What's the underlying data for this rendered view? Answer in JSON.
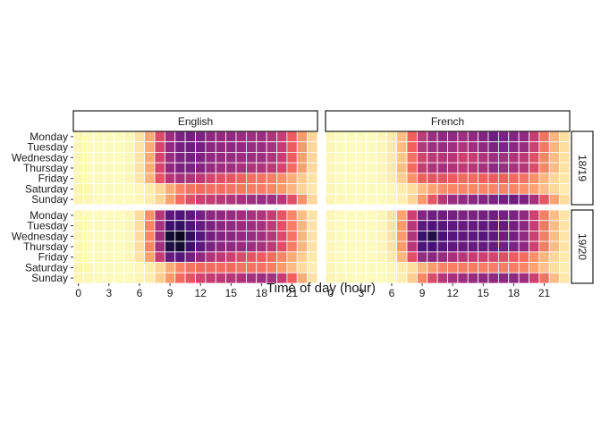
{
  "chart_data": {
    "type": "heatmap",
    "xlabel": "Time of day (hour)",
    "ylabel": "",
    "days": [
      "Monday",
      "Tuesday",
      "Wednesday",
      "Thursday",
      "Friday",
      "Saturday",
      "Sunday"
    ],
    "hours": [
      0,
      1,
      2,
      3,
      4,
      5,
      6,
      7,
      8,
      9,
      10,
      11,
      12,
      13,
      14,
      15,
      16,
      17,
      18,
      19,
      20,
      21,
      22,
      23
    ],
    "x_ticks": [
      0,
      3,
      6,
      9,
      12,
      15,
      18,
      21
    ],
    "columns": [
      "English",
      "French"
    ],
    "rows": [
      "18/19",
      "19/20"
    ],
    "color_scale": "magma",
    "value_range": [
      0,
      1
    ],
    "panels": [
      {
        "language": "English",
        "year": "18/19",
        "values": [
          [
            0.02,
            0.01,
            0.01,
            0.01,
            0.01,
            0.02,
            0.08,
            0.22,
            0.45,
            0.62,
            0.72,
            0.74,
            0.72,
            0.66,
            0.65,
            0.66,
            0.64,
            0.62,
            0.63,
            0.58,
            0.52,
            0.4,
            0.26,
            0.12
          ],
          [
            0.02,
            0.01,
            0.01,
            0.01,
            0.01,
            0.02,
            0.08,
            0.22,
            0.48,
            0.66,
            0.74,
            0.76,
            0.74,
            0.68,
            0.66,
            0.67,
            0.66,
            0.64,
            0.64,
            0.6,
            0.53,
            0.4,
            0.26,
            0.12
          ],
          [
            0.02,
            0.01,
            0.01,
            0.01,
            0.01,
            0.02,
            0.08,
            0.22,
            0.48,
            0.64,
            0.72,
            0.74,
            0.72,
            0.66,
            0.64,
            0.65,
            0.64,
            0.62,
            0.62,
            0.58,
            0.52,
            0.4,
            0.25,
            0.12
          ],
          [
            0.02,
            0.01,
            0.01,
            0.01,
            0.01,
            0.02,
            0.08,
            0.22,
            0.48,
            0.66,
            0.72,
            0.72,
            0.7,
            0.64,
            0.62,
            0.62,
            0.6,
            0.58,
            0.58,
            0.54,
            0.48,
            0.36,
            0.24,
            0.11
          ],
          [
            0.02,
            0.01,
            0.01,
            0.01,
            0.01,
            0.02,
            0.07,
            0.2,
            0.42,
            0.56,
            0.6,
            0.58,
            0.54,
            0.48,
            0.44,
            0.42,
            0.38,
            0.35,
            0.34,
            0.32,
            0.28,
            0.22,
            0.15,
            0.08
          ],
          [
            0.03,
            0.02,
            0.01,
            0.01,
            0.01,
            0.01,
            0.02,
            0.05,
            0.12,
            0.22,
            0.3,
            0.34,
            0.36,
            0.35,
            0.35,
            0.34,
            0.33,
            0.32,
            0.32,
            0.3,
            0.26,
            0.2,
            0.13,
            0.07
          ],
          [
            0.03,
            0.02,
            0.01,
            0.01,
            0.01,
            0.01,
            0.02,
            0.05,
            0.12,
            0.24,
            0.36,
            0.44,
            0.5,
            0.52,
            0.55,
            0.58,
            0.6,
            0.62,
            0.64,
            0.62,
            0.56,
            0.44,
            0.28,
            0.12
          ]
        ]
      },
      {
        "language": "French",
        "year": "18/19",
        "values": [
          [
            0.02,
            0.01,
            0.01,
            0.01,
            0.01,
            0.02,
            0.06,
            0.18,
            0.38,
            0.54,
            0.62,
            0.66,
            0.66,
            0.62,
            0.66,
            0.7,
            0.76,
            0.72,
            0.7,
            0.66,
            0.52,
            0.34,
            0.2,
            0.1
          ],
          [
            0.02,
            0.01,
            0.01,
            0.01,
            0.01,
            0.02,
            0.06,
            0.18,
            0.38,
            0.56,
            0.62,
            0.64,
            0.62,
            0.58,
            0.62,
            0.66,
            0.72,
            0.7,
            0.68,
            0.64,
            0.5,
            0.33,
            0.2,
            0.1
          ],
          [
            0.02,
            0.01,
            0.01,
            0.01,
            0.01,
            0.02,
            0.06,
            0.16,
            0.34,
            0.48,
            0.54,
            0.56,
            0.56,
            0.5,
            0.52,
            0.58,
            0.62,
            0.6,
            0.58,
            0.54,
            0.44,
            0.3,
            0.18,
            0.09
          ],
          [
            0.02,
            0.01,
            0.01,
            0.01,
            0.01,
            0.02,
            0.06,
            0.18,
            0.36,
            0.52,
            0.58,
            0.6,
            0.58,
            0.54,
            0.56,
            0.6,
            0.66,
            0.62,
            0.6,
            0.56,
            0.45,
            0.3,
            0.18,
            0.09
          ],
          [
            0.02,
            0.01,
            0.01,
            0.01,
            0.01,
            0.02,
            0.05,
            0.14,
            0.28,
            0.38,
            0.42,
            0.42,
            0.4,
            0.36,
            0.36,
            0.38,
            0.4,
            0.38,
            0.36,
            0.34,
            0.28,
            0.2,
            0.12,
            0.07
          ],
          [
            0.02,
            0.01,
            0.01,
            0.01,
            0.01,
            0.01,
            0.02,
            0.05,
            0.1,
            0.18,
            0.24,
            0.28,
            0.3,
            0.3,
            0.3,
            0.3,
            0.3,
            0.3,
            0.3,
            0.28,
            0.24,
            0.18,
            0.12,
            0.06
          ],
          [
            0.03,
            0.02,
            0.01,
            0.01,
            0.01,
            0.01,
            0.02,
            0.04,
            0.12,
            0.26,
            0.42,
            0.56,
            0.64,
            0.66,
            0.68,
            0.7,
            0.72,
            0.74,
            0.76,
            0.72,
            0.6,
            0.42,
            0.24,
            0.1
          ]
        ]
      },
      {
        "language": "English",
        "year": "19/20",
        "values": [
          [
            0.02,
            0.01,
            0.01,
            0.01,
            0.01,
            0.02,
            0.1,
            0.28,
            0.56,
            0.8,
            0.84,
            0.8,
            0.74,
            0.68,
            0.66,
            0.64,
            0.62,
            0.6,
            0.58,
            0.52,
            0.42,
            0.3,
            0.18,
            0.08
          ],
          [
            0.02,
            0.01,
            0.01,
            0.01,
            0.01,
            0.02,
            0.1,
            0.3,
            0.6,
            0.88,
            0.9,
            0.84,
            0.78,
            0.72,
            0.68,
            0.66,
            0.64,
            0.62,
            0.6,
            0.54,
            0.44,
            0.32,
            0.2,
            0.08
          ],
          [
            0.02,
            0.01,
            0.01,
            0.01,
            0.01,
            0.02,
            0.1,
            0.3,
            0.62,
            0.96,
            0.98,
            0.9,
            0.82,
            0.74,
            0.7,
            0.68,
            0.66,
            0.64,
            0.62,
            0.56,
            0.46,
            0.34,
            0.2,
            0.08
          ],
          [
            0.02,
            0.01,
            0.01,
            0.01,
            0.01,
            0.02,
            0.1,
            0.3,
            0.62,
            0.94,
            0.96,
            0.88,
            0.8,
            0.72,
            0.68,
            0.66,
            0.64,
            0.62,
            0.6,
            0.54,
            0.44,
            0.32,
            0.2,
            0.08
          ],
          [
            0.02,
            0.01,
            0.01,
            0.01,
            0.01,
            0.02,
            0.08,
            0.24,
            0.52,
            0.78,
            0.82,
            0.74,
            0.66,
            0.58,
            0.54,
            0.5,
            0.46,
            0.42,
            0.4,
            0.36,
            0.3,
            0.22,
            0.14,
            0.06
          ],
          [
            0.03,
            0.02,
            0.01,
            0.01,
            0.01,
            0.01,
            0.02,
            0.05,
            0.12,
            0.22,
            0.3,
            0.34,
            0.36,
            0.36,
            0.36,
            0.36,
            0.34,
            0.34,
            0.34,
            0.32,
            0.26,
            0.18,
            0.11,
            0.05
          ],
          [
            0.03,
            0.02,
            0.01,
            0.01,
            0.01,
            0.01,
            0.02,
            0.05,
            0.14,
            0.26,
            0.36,
            0.42,
            0.48,
            0.52,
            0.54,
            0.56,
            0.58,
            0.6,
            0.62,
            0.6,
            0.52,
            0.38,
            0.22,
            0.08
          ]
        ]
      },
      {
        "language": "French",
        "year": "19/20",
        "values": [
          [
            0.02,
            0.01,
            0.01,
            0.01,
            0.01,
            0.02,
            0.08,
            0.24,
            0.5,
            0.7,
            0.76,
            0.76,
            0.74,
            0.72,
            0.72,
            0.74,
            0.76,
            0.74,
            0.72,
            0.66,
            0.5,
            0.32,
            0.18,
            0.08
          ],
          [
            0.02,
            0.01,
            0.01,
            0.01,
            0.01,
            0.02,
            0.08,
            0.26,
            0.56,
            0.8,
            0.84,
            0.82,
            0.8,
            0.78,
            0.78,
            0.8,
            0.8,
            0.78,
            0.74,
            0.68,
            0.52,
            0.33,
            0.18,
            0.08
          ],
          [
            0.02,
            0.01,
            0.01,
            0.01,
            0.01,
            0.02,
            0.08,
            0.26,
            0.58,
            0.88,
            0.94,
            0.86,
            0.82,
            0.8,
            0.8,
            0.82,
            0.8,
            0.76,
            0.74,
            0.66,
            0.5,
            0.32,
            0.18,
            0.08
          ],
          [
            0.02,
            0.01,
            0.01,
            0.01,
            0.01,
            0.02,
            0.08,
            0.26,
            0.56,
            0.84,
            0.86,
            0.82,
            0.8,
            0.78,
            0.78,
            0.78,
            0.78,
            0.74,
            0.72,
            0.66,
            0.5,
            0.32,
            0.18,
            0.08
          ],
          [
            0.02,
            0.01,
            0.01,
            0.01,
            0.01,
            0.02,
            0.06,
            0.2,
            0.44,
            0.64,
            0.68,
            0.64,
            0.6,
            0.56,
            0.52,
            0.5,
            0.48,
            0.44,
            0.4,
            0.36,
            0.28,
            0.2,
            0.12,
            0.06
          ],
          [
            0.02,
            0.01,
            0.01,
            0.01,
            0.01,
            0.01,
            0.02,
            0.05,
            0.1,
            0.2,
            0.26,
            0.3,
            0.32,
            0.32,
            0.32,
            0.32,
            0.32,
            0.32,
            0.32,
            0.3,
            0.24,
            0.17,
            0.1,
            0.05
          ],
          [
            0.03,
            0.02,
            0.01,
            0.01,
            0.01,
            0.01,
            0.02,
            0.05,
            0.14,
            0.3,
            0.46,
            0.56,
            0.6,
            0.62,
            0.64,
            0.66,
            0.66,
            0.66,
            0.66,
            0.62,
            0.5,
            0.34,
            0.18,
            0.07
          ]
        ]
      }
    ]
  }
}
